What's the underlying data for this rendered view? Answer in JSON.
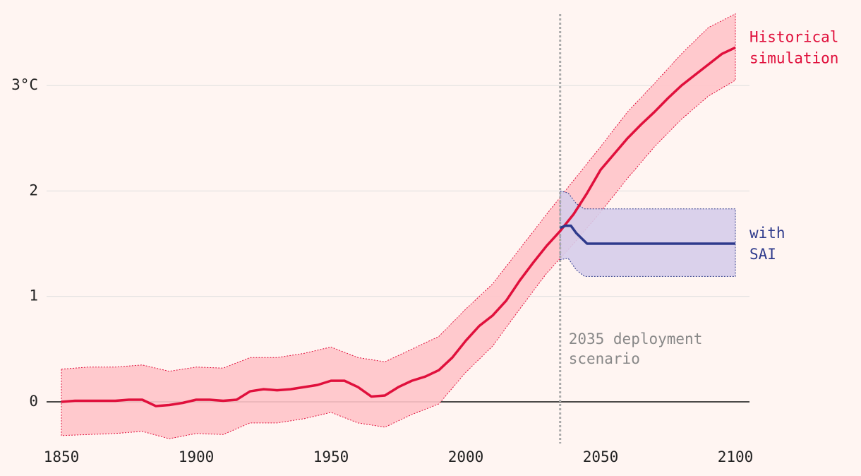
{
  "chart_data": {
    "type": "line",
    "xlim": [
      1850,
      2100
    ],
    "ylim": [
      -0.45,
      3.7
    ],
    "xticks": [
      1850,
      1900,
      1950,
      2000,
      2050,
      2100
    ],
    "yticks": [
      0,
      1,
      2,
      {
        "value": 3,
        "label": "3°C"
      }
    ],
    "grid": true,
    "vline": 2035,
    "annotation": [
      "2035 deployment",
      "scenario"
    ],
    "series": [
      {
        "name": "Historical simulation",
        "color": "#e0103c",
        "band_color": "#ffc4c9",
        "x": [
          1850,
          1855,
          1860,
          1865,
          1870,
          1875,
          1880,
          1885,
          1890,
          1895,
          1900,
          1905,
          1910,
          1915,
          1920,
          1925,
          1930,
          1935,
          1940,
          1945,
          1950,
          1955,
          1960,
          1965,
          1970,
          1975,
          1980,
          1985,
          1990,
          1995,
          2000,
          2005,
          2010,
          2015,
          2020,
          2025,
          2030,
          2035,
          2040,
          2045,
          2050,
          2055,
          2060,
          2065,
          2070,
          2075,
          2080,
          2085,
          2090,
          2095,
          2100
        ],
        "values": [
          0.0,
          0.01,
          0.01,
          0.01,
          0.01,
          0.02,
          0.02,
          -0.04,
          -0.03,
          -0.01,
          0.02,
          0.02,
          0.01,
          0.02,
          0.1,
          0.12,
          0.11,
          0.12,
          0.14,
          0.16,
          0.2,
          0.2,
          0.14,
          0.05,
          0.06,
          0.14,
          0.2,
          0.24,
          0.3,
          0.42,
          0.58,
          0.72,
          0.82,
          0.96,
          1.15,
          1.32,
          1.48,
          1.62,
          1.78,
          1.98,
          2.2,
          2.35,
          2.5,
          2.63,
          2.75,
          2.88,
          3.0,
          3.1,
          3.2,
          3.3,
          3.36
        ],
        "band": {
          "x": [
            1850,
            1860,
            1870,
            1880,
            1890,
            1900,
            1910,
            1920,
            1930,
            1940,
            1950,
            1960,
            1970,
            1980,
            1990,
            2000,
            2010,
            2020,
            2030,
            2040,
            2050,
            2060,
            2070,
            2080,
            2090,
            2100
          ],
          "upper": [
            0.31,
            0.33,
            0.33,
            0.35,
            0.29,
            0.33,
            0.32,
            0.42,
            0.42,
            0.46,
            0.52,
            0.42,
            0.38,
            0.5,
            0.62,
            0.88,
            1.12,
            1.45,
            1.78,
            2.1,
            2.42,
            2.75,
            3.02,
            3.3,
            3.55,
            3.68
          ],
          "lower": [
            -0.32,
            -0.31,
            -0.3,
            -0.28,
            -0.35,
            -0.3,
            -0.31,
            -0.2,
            -0.2,
            -0.16,
            -0.1,
            -0.2,
            -0.24,
            -0.12,
            -0.02,
            0.28,
            0.53,
            0.88,
            1.22,
            1.5,
            1.8,
            2.12,
            2.42,
            2.68,
            2.9,
            3.05
          ]
        }
      },
      {
        "name": "with SAI",
        "color": "#2e3a8c",
        "band_color": "#d6cdea",
        "x": [
          2035,
          2037,
          2039,
          2041,
          2043,
          2045,
          2100
        ],
        "values": [
          1.65,
          1.67,
          1.67,
          1.6,
          1.55,
          1.5,
          1.5
        ],
        "band": {
          "x": [
            2035,
            2038,
            2041,
            2044,
            2100
          ],
          "upper": [
            2.0,
            1.98,
            1.88,
            1.83,
            1.83
          ],
          "lower": [
            1.35,
            1.36,
            1.25,
            1.19,
            1.19
          ]
        }
      }
    ]
  }
}
